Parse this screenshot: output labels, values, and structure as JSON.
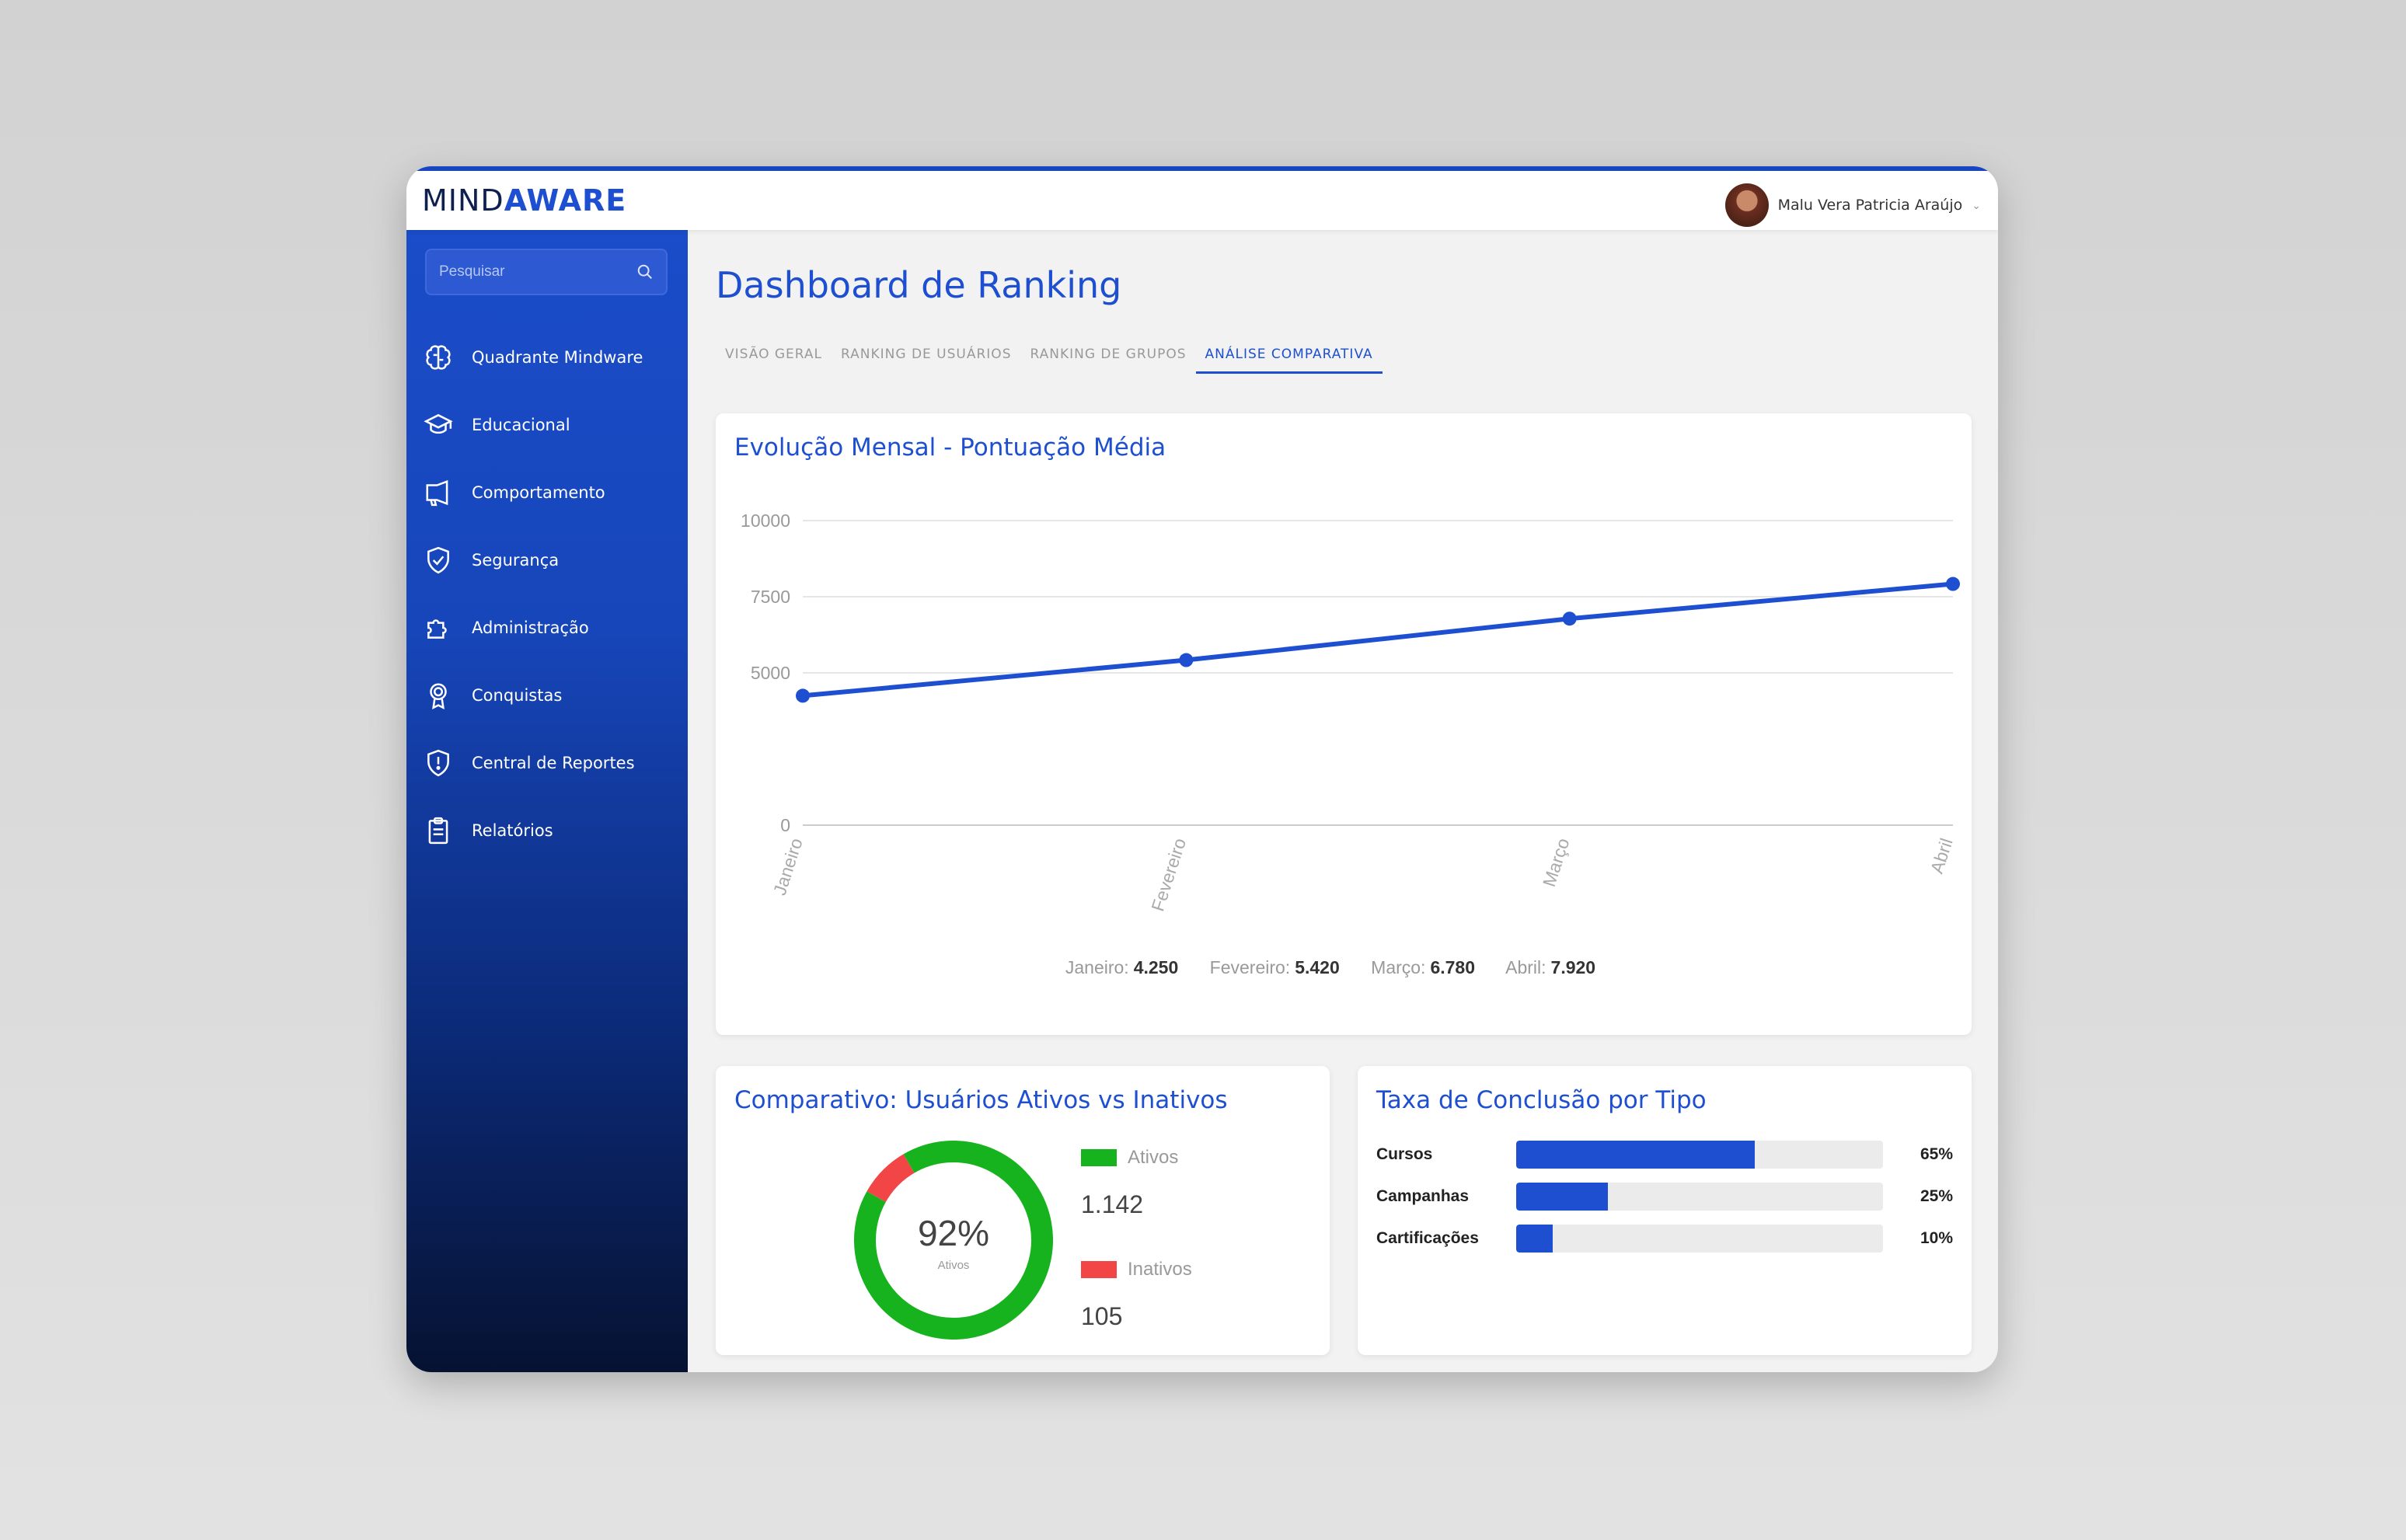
{
  "brand": {
    "part1": "MIND",
    "part2": "AWARE"
  },
  "user": {
    "name": "Malu Vera Patricia Araújo"
  },
  "search": {
    "placeholder": "Pesquisar"
  },
  "sidebar": {
    "items": [
      {
        "label": "Quadrante Mindware",
        "icon": "brain-icon"
      },
      {
        "label": "Educacional",
        "icon": "graduation-cap-icon"
      },
      {
        "label": "Comportamento",
        "icon": "megaphone-icon"
      },
      {
        "label": "Segurança",
        "icon": "shield-check-icon"
      },
      {
        "label": "Administração",
        "icon": "puzzle-icon"
      },
      {
        "label": "Conquistas",
        "icon": "award-icon"
      },
      {
        "label": "Central de Reportes",
        "icon": "shield-alert-icon"
      },
      {
        "label": "Relatórios",
        "icon": "clipboard-icon"
      }
    ]
  },
  "page": {
    "title": "Dashboard de Ranking"
  },
  "tabs": [
    {
      "label": "VISÃO GERAL",
      "active": false
    },
    {
      "label": "RANKING DE USUÁRIOS",
      "active": false
    },
    {
      "label": "RANKING DE GRUPOS",
      "active": false
    },
    {
      "label": "ANÁLISE COMPARATIVA",
      "active": true
    }
  ],
  "line_chart": {
    "title": "Evolução Mensal - Pontuação Média",
    "summary": [
      {
        "label": "Janeiro:",
        "value": "4.250"
      },
      {
        "label": "Fevereiro:",
        "value": "5.420"
      },
      {
        "label": "Março:",
        "value": "6.780"
      },
      {
        "label": "Abril:",
        "value": "7.920"
      }
    ]
  },
  "donut": {
    "title": "Comparativo: Usuários Ativos vs Inativos",
    "percent_label": "92%",
    "center_label": "Ativos",
    "active_label": "Ativos",
    "active_value": "1.142",
    "inactive_label": "Inativos",
    "inactive_value": "105"
  },
  "bars": {
    "title": "Taxa de Conclusão por Tipo",
    "rows": [
      {
        "label": "Cursos",
        "pct_label": "65%"
      },
      {
        "label": "Campanhas",
        "pct_label": "25%"
      },
      {
        "label": "Cartificações",
        "pct_label": "10%"
      }
    ]
  },
  "colors": {
    "accent": "#1d4fd0",
    "active": "#17b31f",
    "inactive": "#f24545",
    "track": "#ebebeb"
  },
  "chart_data": [
    {
      "type": "line",
      "title": "Evolução Mensal - Pontuação Média",
      "categories": [
        "Janeiro",
        "Fevereiro",
        "Março",
        "Abril"
      ],
      "values": [
        4250,
        5420,
        6780,
        7920
      ],
      "yticks": [
        0,
        5000,
        7500,
        10000
      ],
      "ylim": [
        0,
        10000
      ],
      "grid": true
    },
    {
      "type": "pie",
      "title": "Comparativo: Usuários Ativos vs Inativos",
      "categories": [
        "Ativos",
        "Inativos"
      ],
      "values": [
        1142,
        105
      ]
    },
    {
      "type": "bar",
      "title": "Taxa de Conclusão por Tipo",
      "categories": [
        "Cursos",
        "Campanhas",
        "Cartificações"
      ],
      "values": [
        65,
        25,
        10
      ],
      "ylim": [
        0,
        100
      ]
    }
  ]
}
